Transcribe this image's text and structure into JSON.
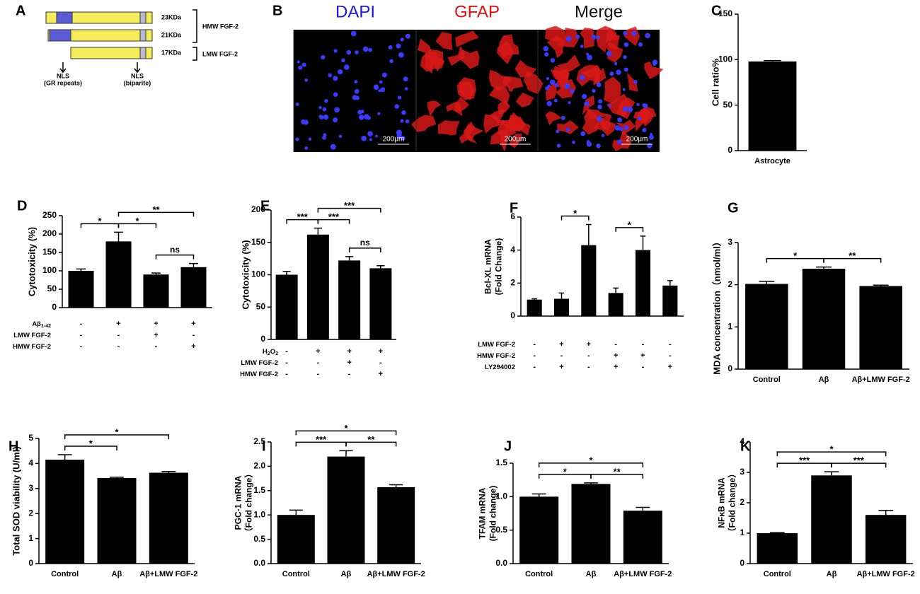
{
  "panel_a": {
    "panel": "A",
    "isoforms": [
      "23KDa",
      "21KDa",
      "17KDa"
    ],
    "groups": [
      "HMW FGF-2",
      "LMW FGF-2"
    ],
    "nls": [
      {
        "label": "NLS",
        "note": "(GR repeats)"
      },
      {
        "label": "NLS",
        "note": "(biparite)"
      }
    ]
  },
  "panel_b": {
    "panel": "B",
    "channels": [
      "DAPI",
      "GFAP",
      "Merge"
    ],
    "scale_bar": "200μm"
  },
  "chart_data": [
    {
      "type": "bar",
      "panel": "C",
      "ylabel": "Cell ratio%",
      "categories": [
        "Astrocyte"
      ],
      "values": [
        98
      ],
      "errors": [
        1
      ],
      "color": "#000000",
      "ylim": [
        0,
        150
      ],
      "yticks": [
        0,
        50,
        100,
        150
      ],
      "annotations": []
    },
    {
      "type": "bar",
      "panel": "D",
      "ylabel": "Cytotoxicity (%)",
      "categories": [
        null,
        null,
        null,
        null
      ],
      "values": [
        100,
        180,
        90,
        110
      ],
      "errors": [
        5,
        25,
        4,
        10
      ],
      "color": "#000000",
      "ylim": [
        0,
        250
      ],
      "yticks": [
        0,
        50,
        100,
        150,
        200,
        250
      ],
      "rows": [
        {
          "label": [
            "Aβ",
            "1-42"
          ],
          "signs": [
            "-",
            "+",
            "+",
            "+"
          ]
        },
        {
          "label": [
            "LMW FGF-2"
          ],
          "signs": [
            "-",
            "-",
            "+",
            "-"
          ]
        },
        {
          "label": [
            "HMW FGF-2"
          ],
          "signs": [
            "-",
            "-",
            "-",
            "+"
          ]
        }
      ],
      "annotations": [
        {
          "text": "*",
          "between": [
            0,
            1
          ]
        },
        {
          "text": "*",
          "between": [
            1,
            2
          ]
        },
        {
          "text": "**",
          "between": [
            1,
            3
          ]
        },
        {
          "text": "ns",
          "between": [
            2,
            3
          ]
        }
      ]
    },
    {
      "type": "bar",
      "panel": "E",
      "ylabel": "Cytotoxicity (%)",
      "categories": [
        null,
        null,
        null,
        null
      ],
      "values": [
        100,
        162,
        122,
        110
      ],
      "errors": [
        5,
        10,
        6,
        4
      ],
      "color": "#000000",
      "ylim": [
        0,
        200
      ],
      "yticks": [
        0,
        50,
        100,
        150,
        200
      ],
      "rows": [
        {
          "label": [
            "H",
            "2",
            "O",
            "2"
          ],
          "signs": [
            "-",
            "+",
            "+",
            "+"
          ]
        },
        {
          "label": [
            "LMW FGF-2"
          ],
          "signs": [
            "-",
            "-",
            "+",
            "-"
          ]
        },
        {
          "label": [
            "HMW FGF-2"
          ],
          "signs": [
            "-",
            "-",
            "-",
            "+"
          ]
        }
      ],
      "annotations": [
        {
          "text": "***",
          "between": [
            0,
            1
          ]
        },
        {
          "text": "***",
          "between": [
            1,
            2
          ]
        },
        {
          "text": "***",
          "between": [
            1,
            3
          ]
        },
        {
          "text": "ns",
          "between": [
            2,
            3
          ]
        }
      ]
    },
    {
      "type": "bar",
      "panel": "F",
      "ylabel": [
        "Bcl-XL mRNA",
        "(Fold Change)"
      ],
      "categories": [
        null,
        null,
        null,
        null,
        null,
        null
      ],
      "values": [
        1.0,
        1.05,
        4.3,
        1.4,
        4.0,
        1.85
      ],
      "errors": [
        0.05,
        0.35,
        1.25,
        0.3,
        0.85,
        0.3
      ],
      "color": "#000000",
      "ylim": [
        0,
        6
      ],
      "yticks": [
        0,
        2,
        4,
        6
      ],
      "rows": [
        {
          "label": [
            "LMW FGF-2"
          ],
          "signs": [
            "-",
            "+",
            "+",
            "-",
            "-",
            "-"
          ]
        },
        {
          "label": [
            "HMW FGF-2"
          ],
          "signs": [
            "-",
            "-",
            "-",
            "+",
            "+",
            "-"
          ]
        },
        {
          "label": [
            "LY294002"
          ],
          "signs": [
            "-",
            "+",
            "-",
            "+",
            "-",
            "+"
          ]
        }
      ],
      "annotations": [
        {
          "text": "*",
          "between": [
            1,
            2
          ]
        },
        {
          "text": "*",
          "between": [
            3,
            4
          ]
        }
      ]
    },
    {
      "type": "bar",
      "panel": "G",
      "ylabel": "MDA concentration（nmol/ml）",
      "categories": [
        "Control",
        "Aβ",
        "Aβ+LMW FGF-2"
      ],
      "values": [
        2.02,
        2.38,
        1.97
      ],
      "errors": [
        0.06,
        0.04,
        0.02
      ],
      "color": "#000000",
      "ylim": [
        0,
        3
      ],
      "yticks": [
        0,
        1,
        2,
        3
      ],
      "annotations": [
        {
          "text": "*",
          "between": [
            0,
            1
          ]
        },
        {
          "text": "**",
          "between": [
            1,
            2
          ]
        }
      ]
    },
    {
      "type": "bar",
      "panel": "H",
      "ylabel": "Total SOD viability (U/ml)",
      "categories": [
        "Control",
        "Aβ",
        "Aβ+LMW FGF-2"
      ],
      "values": [
        4.15,
        3.42,
        3.63
      ],
      "errors": [
        0.2,
        0.03,
        0.05
      ],
      "color": "#000000",
      "ylim": [
        0,
        5
      ],
      "yticks": [
        0,
        1,
        2,
        3,
        4,
        5
      ],
      "annotations": [
        {
          "text": "*",
          "between": [
            0,
            1
          ]
        },
        {
          "text": "*",
          "between": [
            0,
            2
          ]
        }
      ]
    },
    {
      "type": "bar",
      "panel": "I",
      "ylabel": [
        "PGC-1 mRNA",
        "（Fold change）"
      ],
      "categories": [
        "Control",
        "Aβ",
        "Aβ+LMW FGF-2"
      ],
      "values": [
        1.0,
        2.2,
        1.57
      ],
      "errors": [
        0.1,
        0.12,
        0.05
      ],
      "color": "#000000",
      "ylim": [
        0,
        2.5
      ],
      "yticks": [
        {
          "value": 0,
          "label": "0.0"
        },
        0.5,
        {
          "value": 1,
          "label": "1.0"
        },
        1.5,
        {
          "value": 2,
          "label": "2.0"
        },
        2.5
      ],
      "annotations": [
        {
          "text": "***",
          "between": [
            0,
            1
          ]
        },
        {
          "text": "**",
          "between": [
            1,
            2
          ]
        },
        {
          "text": "*",
          "between": [
            0,
            2
          ]
        }
      ]
    },
    {
      "type": "bar",
      "panel": "J",
      "ylabel": [
        "TFAM mRNA",
        "(Fold change)"
      ],
      "categories": [
        "Control",
        "Aβ",
        "Aβ+LMW FGF-2"
      ],
      "values": [
        1.0,
        1.19,
        0.79
      ],
      "errors": [
        0.04,
        0.015,
        0.05
      ],
      "color": "#000000",
      "ylim": [
        0,
        1.5
      ],
      "yticks": [
        {
          "value": 0,
          "label": "0.0"
        },
        0.5,
        {
          "value": 1,
          "label": "1.0"
        },
        1.5
      ],
      "annotations": [
        {
          "text": "*",
          "between": [
            0,
            1
          ]
        },
        {
          "text": "**",
          "between": [
            1,
            2
          ]
        },
        {
          "text": "*",
          "between": [
            0,
            2
          ]
        }
      ]
    },
    {
      "type": "bar",
      "panel": "K",
      "ylabel": [
        "NFκB mRNA",
        "（Fold change）"
      ],
      "categories": [
        "Control",
        "Aβ",
        "Aβ+LMW FGF-2"
      ],
      "values": [
        1.0,
        2.9,
        1.6
      ],
      "errors": [
        0.02,
        0.12,
        0.15
      ],
      "color": "#000000",
      "ylim": [
        0,
        4
      ],
      "yticks": [
        0,
        1,
        2,
        3,
        4
      ],
      "annotations": [
        {
          "text": "***",
          "between": [
            0,
            1
          ]
        },
        {
          "text": "***",
          "between": [
            1,
            2
          ]
        },
        {
          "text": "*",
          "between": [
            0,
            2
          ]
        }
      ]
    }
  ]
}
